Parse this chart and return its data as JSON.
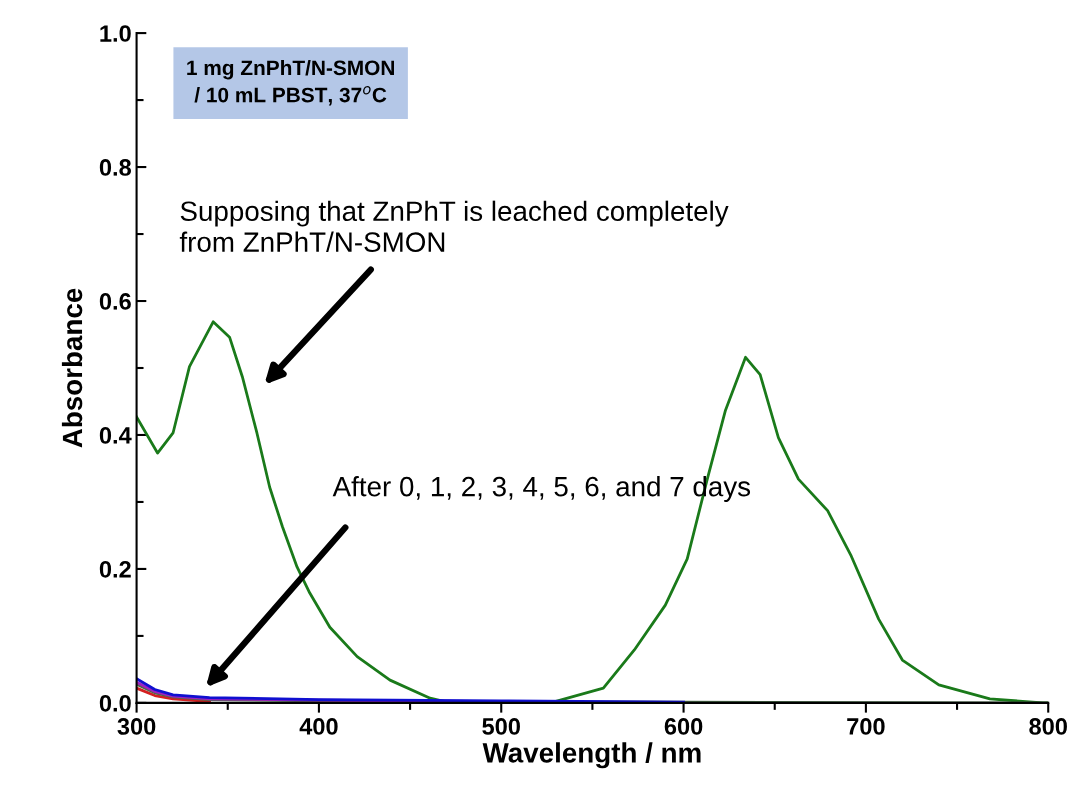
{
  "chart_data": {
    "type": "line",
    "xlabel": "Wavelength / nm",
    "ylabel": "Absorbance",
    "xlim": [
      300,
      800
    ],
    "xticks": [
      300,
      400,
      500,
      600,
      700,
      800
    ],
    "ylim": [
      0,
      1.0
    ],
    "yticks": [
      {
        "value": 0,
        "label": "0.0"
      },
      0.2,
      0.4,
      0.6,
      0.8,
      {
        "value": 1,
        "label": "1.0"
      }
    ],
    "grid": false,
    "legend": false,
    "marker": "none",
    "line_style": "solid",
    "annotations": [
      "1 mg ZnPhT/N-SMON\n/ 10 mL PBST, 37$^{o}$C",
      "Supposing that ZnPhT is leached completely\nfrom ZnPhT/N-SMON",
      "After 0, 1, 2, 3, 4, 5, 6, and 7 days"
    ],
    "series": [
      {
        "color": "#1a7a1a",
        "x": [
          300,
          311.5,
          320,
          329,
          342,
          351,
          358,
          366,
          373,
          380,
          388,
          395,
          406,
          421,
          439,
          461,
          472,
          500,
          527,
          556,
          573,
          590,
          602,
          613,
          623,
          634,
          642,
          652,
          663,
          679,
          692,
          707,
          720,
          740,
          768,
          797,
          800
        ],
        "values": [
          0.427,
          0.373,
          0.403,
          0.502,
          0.569,
          0.546,
          0.487,
          0.403,
          0.322,
          0.263,
          0.203,
          0.164,
          0.113,
          0.069,
          0.034,
          0.007,
          0.0,
          0.0,
          0.0,
          0.022,
          0.079,
          0.146,
          0.215,
          0.334,
          0.437,
          0.516,
          0.49,
          0.396,
          0.334,
          0.287,
          0.219,
          0.125,
          0.064,
          0.027,
          0.006,
          0.0,
          0.0
        ]
      },
      {
        "color": "#d42020",
        "x": [
          300,
          310,
          320,
          340
        ],
        "values": [
          0.022,
          0.011,
          0.006,
          0.002
        ]
      },
      {
        "color": "#4a6a4a",
        "x": [
          300,
          310,
          320,
          340,
          400,
          500,
          600,
          800
        ],
        "values": [
          0.028,
          0.015,
          0.009,
          0.005,
          0.003,
          0.002,
          0.001,
          0.0
        ]
      },
      {
        "color": "#a020c0",
        "x": [
          300,
          310,
          320,
          340,
          400,
          500
        ],
        "values": [
          0.031,
          0.017,
          0.01,
          0.006,
          0.004,
          0.002
        ]
      },
      {
        "color": "#1010d0",
        "x": [
          300,
          310,
          320,
          340,
          400,
          500,
          600
        ],
        "values": [
          0.036,
          0.02,
          0.012,
          0.008,
          0.005,
          0.003,
          0.001
        ]
      }
    ]
  }
}
